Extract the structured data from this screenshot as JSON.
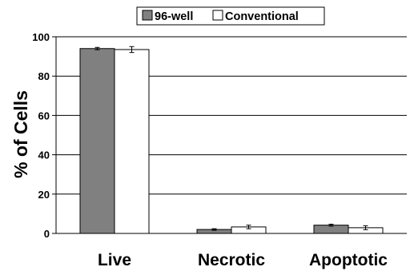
{
  "chart_data": {
    "type": "bar",
    "categories": [
      "Live",
      "Necrotic",
      "Apoptotic"
    ],
    "series": [
      {
        "name": "96-well",
        "values": [
          94,
          2,
          4.2
        ],
        "errors": [
          0.6,
          0.4,
          0.5
        ],
        "color": "#808080"
      },
      {
        "name": "Conventional",
        "values": [
          93.5,
          3.3,
          2.9
        ],
        "errors": [
          1.5,
          0.9,
          1.0
        ],
        "color": "#ffffff"
      }
    ],
    "ylabel": "% of Cells",
    "ylim": [
      0,
      100
    ],
    "yticks": [
      0,
      20,
      40,
      60,
      80,
      100
    ],
    "grid": true,
    "legend": "top"
  }
}
